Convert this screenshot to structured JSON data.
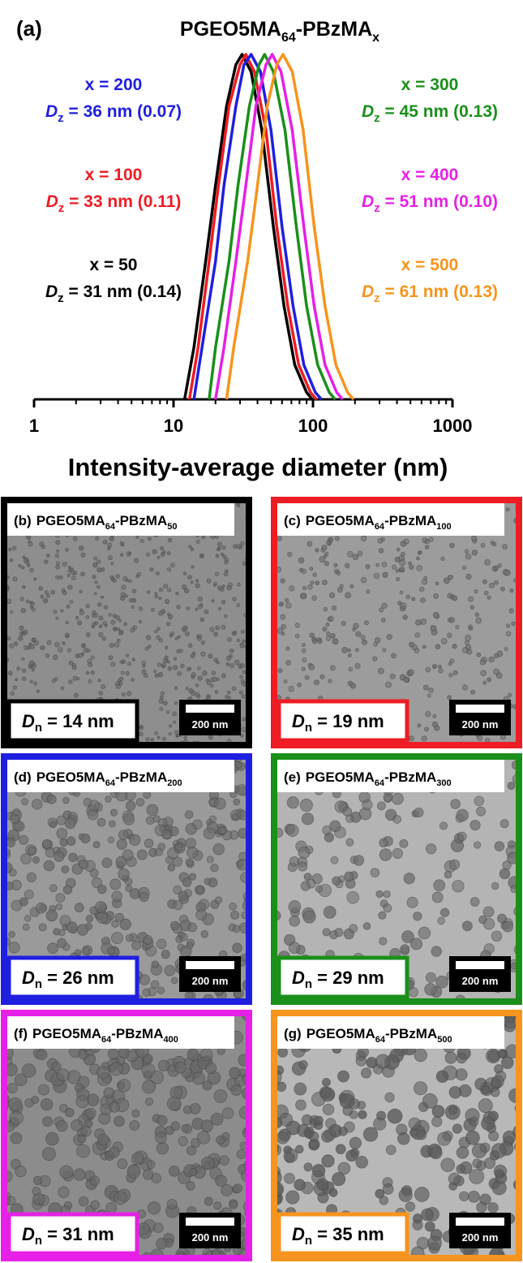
{
  "chart_data": {
    "type": "line",
    "panel_label": "(a)",
    "title": [
      "PGEO5MA",
      "64",
      "-PBzMA",
      "x"
    ],
    "x_label": "Intensity-average diameter (nm)",
    "log_x": true,
    "minor_ticks": true,
    "xlim": [
      1,
      1000
    ],
    "xticks": [
      1,
      10,
      100,
      1000
    ],
    "ylim": [
      0,
      1
    ],
    "series": [
      {
        "name": "x = 50",
        "label": [
          "D",
          "z",
          " = 31 nm (0.14)"
        ],
        "color": "#000000",
        "x": [
          12,
          14,
          17,
          20,
          24,
          28,
          31,
          36,
          43,
          52,
          62,
          74,
          90,
          99
        ],
        "values": [
          0,
          0.15,
          0.4,
          0.62,
          0.85,
          0.97,
          1,
          0.95,
          0.78,
          0.5,
          0.27,
          0.1,
          0.02,
          0
        ]
      },
      {
        "name": "x = 100",
        "label": [
          "D",
          "z",
          " = 33 nm (0.11)"
        ],
        "color": "#ee1c24",
        "x": [
          13,
          15,
          18,
          21,
          25,
          30,
          33,
          38,
          46,
          55,
          66,
          79,
          96,
          106
        ],
        "values": [
          0,
          0.15,
          0.4,
          0.62,
          0.85,
          0.97,
          1,
          0.95,
          0.78,
          0.5,
          0.27,
          0.1,
          0.02,
          0
        ]
      },
      {
        "name": "x = 200",
        "label": [
          "D",
          "z",
          " = 36 nm (0.07)"
        ],
        "color": "#1f1fe0",
        "x": [
          14,
          16,
          20,
          23,
          28,
          32,
          36,
          42,
          50,
          60,
          72,
          86,
          104,
          115
        ],
        "values": [
          0,
          0.15,
          0.4,
          0.62,
          0.85,
          0.97,
          1,
          0.95,
          0.78,
          0.5,
          0.27,
          0.1,
          0.02,
          0
        ]
      },
      {
        "name": "x = 300",
        "label": [
          "D",
          "z",
          " = 45 nm (0.13)"
        ],
        "color": "#1a8f1a",
        "x": [
          18,
          20,
          25,
          29,
          35,
          41,
          45,
          52,
          63,
          76,
          90,
          108,
          131,
          144
        ],
        "values": [
          0,
          0.15,
          0.4,
          0.62,
          0.85,
          0.97,
          1,
          0.95,
          0.78,
          0.5,
          0.27,
          0.1,
          0.02,
          0
        ]
      },
      {
        "name": "x = 400",
        "label": [
          "D",
          "z",
          " = 51 nm (0.10)"
        ],
        "color": "#e620e6",
        "x": [
          20,
          23,
          28,
          33,
          39,
          46,
          51,
          59,
          71,
          86,
          102,
          122,
          148,
          163
        ],
        "values": [
          0,
          0.15,
          0.4,
          0.62,
          0.85,
          0.97,
          1,
          0.95,
          0.78,
          0.5,
          0.27,
          0.1,
          0.02,
          0
        ]
      },
      {
        "name": "x = 500",
        "label": [
          "D",
          "z",
          " = 61 nm (0.13)"
        ],
        "color": "#f7941d",
        "x": [
          24,
          27,
          34,
          40,
          47,
          55,
          61,
          71,
          85,
          102,
          122,
          146,
          177,
          195
        ],
        "values": [
          0,
          0.15,
          0.4,
          0.62,
          0.85,
          0.97,
          1,
          0.95,
          0.78,
          0.5,
          0.27,
          0.1,
          0.02,
          0
        ]
      }
    ]
  },
  "panels": [
    {
      "label": "(b)",
      "title": [
        "PGEO5MA",
        "64",
        "-PBzMA",
        "50"
      ],
      "size": [
        "D",
        "n",
        " = 14 nm"
      ],
      "scale_bar": "200 nm",
      "color": "#000000"
    },
    {
      "label": "(c)",
      "title": [
        "PGEO5MA",
        "64",
        "-PBzMA",
        "100"
      ],
      "size": [
        "D",
        "n",
        " = 19 nm"
      ],
      "scale_bar": "200 nm",
      "color": "#ee1c24"
    },
    {
      "label": "(d)",
      "title": [
        "PGEO5MA",
        "64",
        "-PBzMA",
        "200"
      ],
      "size": [
        "D",
        "n",
        " = 26 nm"
      ],
      "scale_bar": "200 nm",
      "color": "#1f1fe0"
    },
    {
      "label": "(e)",
      "title": [
        "PGEO5MA",
        "64",
        "-PBzMA",
        "300"
      ],
      "size": [
        "D",
        "n",
        " = 29 nm"
      ],
      "scale_bar": "200 nm",
      "color": "#1a8f1a"
    },
    {
      "label": "(f)",
      "title": [
        "PGEO5MA",
        "64",
        "-PBzMA",
        "400"
      ],
      "size": [
        "D",
        "n",
        " = 31 nm"
      ],
      "scale_bar": "200 nm",
      "color": "#e620e6"
    },
    {
      "label": "(g)",
      "title": [
        "PGEO5MA",
        "64",
        "-PBzMA",
        "500"
      ],
      "size": [
        "D",
        "n",
        " = 35 nm"
      ],
      "scale_bar": "200 nm",
      "color": "#f7941d"
    }
  ]
}
